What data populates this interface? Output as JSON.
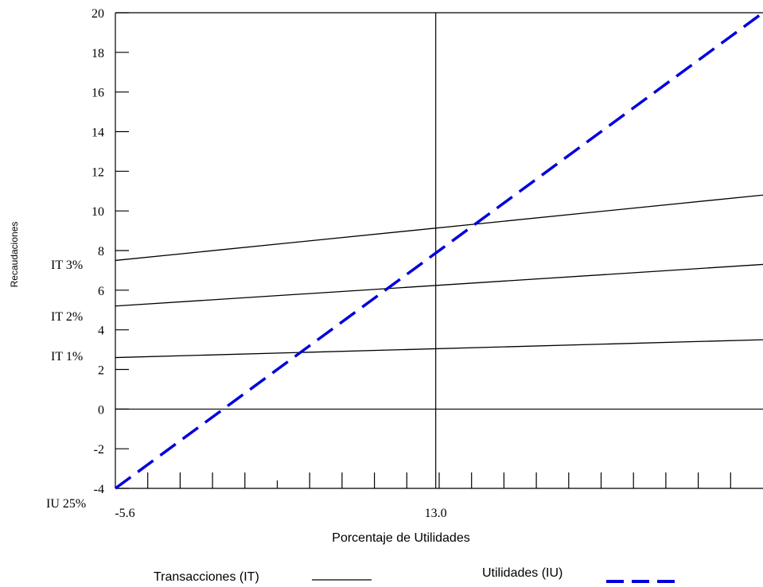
{
  "chart_data": {
    "type": "line",
    "title": "",
    "xlabel": "Porcentaje  de  Utilidades",
    "ylabel": "Recaudaciones",
    "xlim": [
      -5.6,
      32.0
    ],
    "ylim": [
      -4,
      20
    ],
    "y_ticks": [
      -4,
      -2,
      0,
      2,
      4,
      6,
      8,
      10,
      12,
      14,
      16,
      18,
      20
    ],
    "x_tick_labels": [
      {
        "x": -5.6,
        "label": "-5.6"
      },
      {
        "x": 13.0,
        "label": "13.0"
      }
    ],
    "x_minor_tick_count": 19,
    "grid": false,
    "series": [
      {
        "name": "IT 3%",
        "label": "IT 3%",
        "style": "solid",
        "color": "#000000",
        "x": [
          -5.6,
          32.0
        ],
        "y": [
          7.5,
          10.8
        ]
      },
      {
        "name": "IT 2%",
        "label": "IT 2%",
        "style": "solid",
        "color": "#000000",
        "x": [
          -5.6,
          32.0
        ],
        "y": [
          5.2,
          7.3
        ]
      },
      {
        "name": "IT 1%",
        "label": "IT 1%",
        "style": "solid",
        "color": "#000000",
        "x": [
          -5.6,
          32.0
        ],
        "y": [
          2.6,
          3.5
        ]
      },
      {
        "name": "IU 25%",
        "label": "IU 25%",
        "style": "dashed",
        "color": "#0000dd",
        "x": [
          -5.6,
          32.0
        ],
        "y": [
          -4.0,
          20.0
        ]
      }
    ],
    "legend": {
      "placement": "bottom",
      "entries": [
        {
          "label": "Transacciones (IT)",
          "style": "solid",
          "color": "#000000"
        },
        {
          "label": "Utilidades (IU)",
          "style": "dashed",
          "color": "#0000dd"
        }
      ]
    }
  }
}
